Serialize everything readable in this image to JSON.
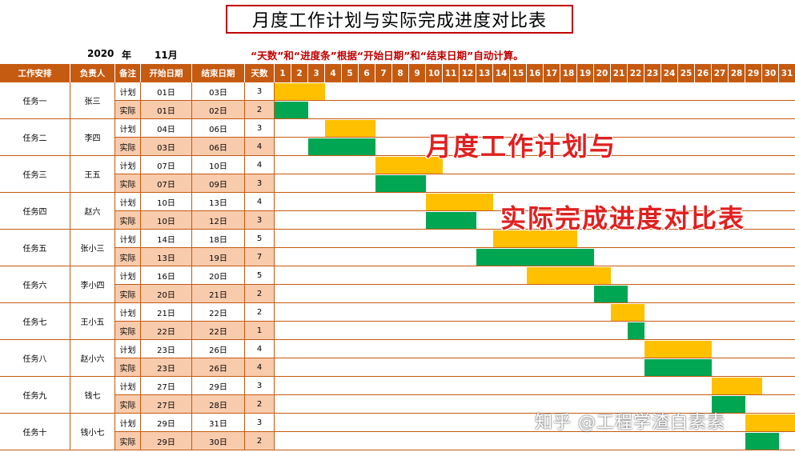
{
  "title": "月度工作计划与实际完成进度对比表",
  "year": "2020",
  "year_unit": "年",
  "month": "11月",
  "note": "“天数”和“进度条”根据“开始日期”和“结束日期”自动计算。",
  "headers": {
    "task": "工作安排",
    "owner": "负责人",
    "remark": "备注",
    "start": "开始日期",
    "end": "结束日期",
    "days": "天数"
  },
  "day_columns": [
    "1",
    "2",
    "3",
    "4",
    "5",
    "6",
    "7",
    "8",
    "9",
    "10",
    "11",
    "12",
    "13",
    "14",
    "15",
    "16",
    "17",
    "18",
    "19",
    "20",
    "21",
    "22",
    "23",
    "24",
    "25",
    "26",
    "27",
    "28",
    "29",
    "30",
    "31"
  ],
  "tasks": [
    {
      "name": "任务一",
      "owner": "张三",
      "rows": [
        {
          "type": "计划",
          "start": "01日",
          "end": "03日",
          "days": "3",
          "s": 1,
          "e": 3
        },
        {
          "type": "实际",
          "start": "01日",
          "end": "02日",
          "days": "2",
          "s": 1,
          "e": 2
        }
      ]
    },
    {
      "name": "任务二",
      "owner": "李四",
      "rows": [
        {
          "type": "计划",
          "start": "04日",
          "end": "06日",
          "days": "3",
          "s": 4,
          "e": 6
        },
        {
          "type": "实际",
          "start": "03日",
          "end": "06日",
          "days": "4",
          "s": 3,
          "e": 6
        }
      ]
    },
    {
      "name": "任务三",
      "owner": "王五",
      "rows": [
        {
          "type": "计划",
          "start": "07日",
          "end": "10日",
          "days": "4",
          "s": 7,
          "e": 10
        },
        {
          "type": "实际",
          "start": "07日",
          "end": "09日",
          "days": "3",
          "s": 7,
          "e": 9
        }
      ]
    },
    {
      "name": "任务四",
      "owner": "赵六",
      "rows": [
        {
          "type": "计划",
          "start": "10日",
          "end": "13日",
          "days": "4",
          "s": 10,
          "e": 13
        },
        {
          "type": "实际",
          "start": "10日",
          "end": "12日",
          "days": "3",
          "s": 10,
          "e": 12
        }
      ]
    },
    {
      "name": "任务五",
      "owner": "张小三",
      "rows": [
        {
          "type": "计划",
          "start": "14日",
          "end": "18日",
          "days": "5",
          "s": 14,
          "e": 18
        },
        {
          "type": "实际",
          "start": "13日",
          "end": "19日",
          "days": "7",
          "s": 13,
          "e": 19
        }
      ]
    },
    {
      "name": "任务六",
      "owner": "李小四",
      "rows": [
        {
          "type": "计划",
          "start": "16日",
          "end": "20日",
          "days": "5",
          "s": 16,
          "e": 20
        },
        {
          "type": "实际",
          "start": "20日",
          "end": "21日",
          "days": "2",
          "s": 20,
          "e": 21
        }
      ]
    },
    {
      "name": "任务七",
      "owner": "王小五",
      "rows": [
        {
          "type": "计划",
          "start": "21日",
          "end": "22日",
          "days": "2",
          "s": 21,
          "e": 22
        },
        {
          "type": "实际",
          "start": "22日",
          "end": "22日",
          "days": "1",
          "s": 22,
          "e": 22
        }
      ]
    },
    {
      "name": "任务八",
      "owner": "赵小六",
      "rows": [
        {
          "type": "计划",
          "start": "23日",
          "end": "26日",
          "days": "4",
          "s": 23,
          "e": 26
        },
        {
          "type": "实际",
          "start": "23日",
          "end": "26日",
          "days": "4",
          "s": 23,
          "e": 26
        }
      ]
    },
    {
      "name": "任务九",
      "owner": "钱七",
      "rows": [
        {
          "type": "计划",
          "start": "27日",
          "end": "29日",
          "days": "3",
          "s": 27,
          "e": 29
        },
        {
          "type": "实际",
          "start": "27日",
          "end": "28日",
          "days": "2",
          "s": 27,
          "e": 28
        }
      ]
    },
    {
      "name": "任务十",
      "owner": "钱小七",
      "rows": [
        {
          "type": "计划",
          "start": "29日",
          "end": "31日",
          "days": "3",
          "s": 29,
          "e": 31
        },
        {
          "type": "实际",
          "start": "29日",
          "end": "30日",
          "days": "2",
          "s": 29,
          "e": 30
        }
      ]
    }
  ],
  "overlay_line1": "月度工作计划与",
  "overlay_line2": "实际完成进度对比表",
  "watermark": "知乎 @工程学渣白素素",
  "colors": {
    "header": "#c55a11",
    "plan_bar": "#ffc000",
    "actual_bar": "#00a651",
    "actual_row": "#f8cbad",
    "accent": "#c00000"
  }
}
